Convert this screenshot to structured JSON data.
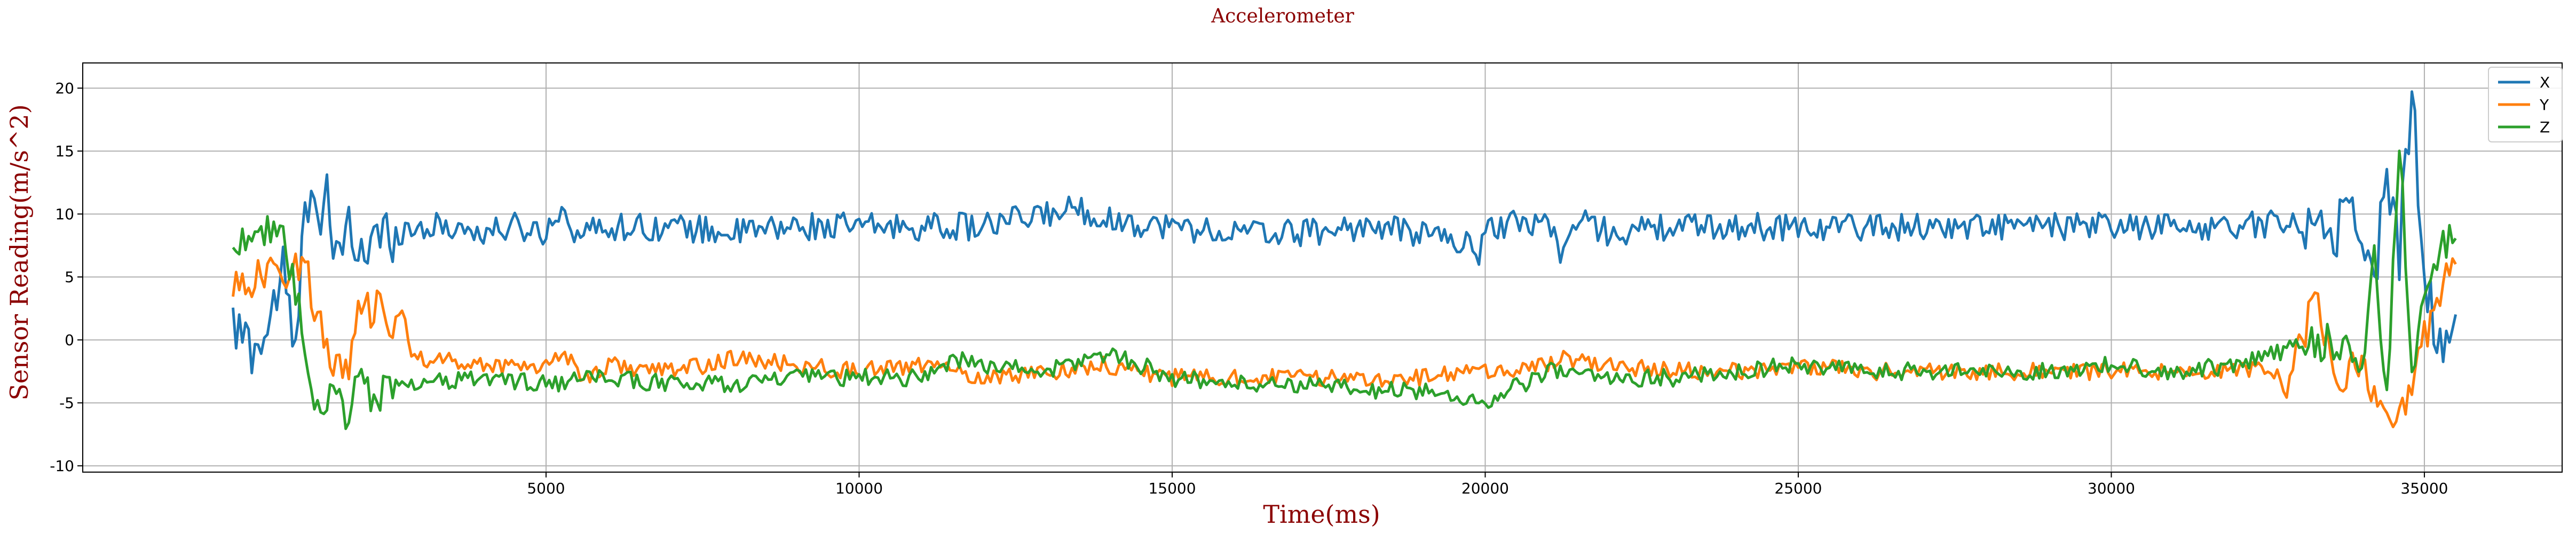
{
  "chart_data": {
    "type": "line",
    "title": "Accelerometer",
    "xlabel": "Time(ms)",
    "ylabel": "Sensor Reading(m/s^2)",
    "xlim": [
      -2400,
      37200
    ],
    "ylim": [
      -10.5,
      22
    ],
    "xticks": [
      5000,
      10000,
      15000,
      20000,
      25000,
      30000,
      35000
    ],
    "yticks": [
      -10,
      -5,
      0,
      5,
      10,
      15,
      20
    ],
    "grid": true,
    "legend_position": "top-right",
    "x_start": 0,
    "x_end": 35500,
    "title_color": "#8b0000",
    "label_color": "#8b0000",
    "series": [
      {
        "name": "X",
        "color": "#1f77b4",
        "keypoints": [
          [
            0,
            0.8
          ],
          [
            300,
            -0.5
          ],
          [
            500,
            0.2
          ],
          [
            800,
            5.5
          ],
          [
            1000,
            -1.5
          ],
          [
            1100,
            7
          ],
          [
            1200,
            11
          ],
          [
            1300,
            13.5
          ],
          [
            1400,
            9
          ],
          [
            1500,
            12.5
          ],
          [
            1600,
            4.5
          ],
          [
            1800,
            9
          ],
          [
            2000,
            7
          ],
          [
            2500,
            8.5
          ],
          [
            3000,
            9
          ],
          [
            3500,
            9
          ],
          [
            4000,
            8.5
          ],
          [
            4500,
            9
          ],
          [
            5000,
            8.5
          ],
          [
            5200,
            10.5
          ],
          [
            5500,
            8.5
          ],
          [
            6000,
            9
          ],
          [
            7000,
            9
          ],
          [
            8000,
            8.5
          ],
          [
            9000,
            9
          ],
          [
            10000,
            9
          ],
          [
            12000,
            9
          ],
          [
            13500,
            10.5
          ],
          [
            14000,
            9.5
          ],
          [
            15000,
            9
          ],
          [
            16000,
            8.5
          ],
          [
            17000,
            8.5
          ],
          [
            18000,
            9
          ],
          [
            19000,
            8.5
          ],
          [
            19500,
            8
          ],
          [
            19900,
            7
          ],
          [
            20000,
            9
          ],
          [
            21000,
            9.5
          ],
          [
            21200,
            7
          ],
          [
            21500,
            9.5
          ],
          [
            22000,
            8.5
          ],
          [
            23000,
            9
          ],
          [
            24000,
            9
          ],
          [
            25000,
            9
          ],
          [
            26000,
            9
          ],
          [
            27000,
            9
          ],
          [
            28000,
            9
          ],
          [
            29000,
            9
          ],
          [
            30000,
            9
          ],
          [
            31000,
            9
          ],
          [
            32000,
            9
          ],
          [
            33000,
            9.5
          ],
          [
            33500,
            8.5
          ],
          [
            33800,
            10
          ],
          [
            34000,
            9
          ],
          [
            34200,
            4
          ],
          [
            34400,
            14
          ],
          [
            34600,
            7
          ],
          [
            34800,
            20
          ],
          [
            35000,
            4.5
          ],
          [
            35200,
            0.5
          ],
          [
            35400,
            0
          ],
          [
            35500,
            -0.3
          ]
        ]
      },
      {
        "name": "Y",
        "color": "#ff7f0e",
        "keypoints": [
          [
            0,
            4.5
          ],
          [
            500,
            5
          ],
          [
            800,
            5.5
          ],
          [
            1000,
            6
          ],
          [
            1200,
            5.5
          ],
          [
            1300,
            2
          ],
          [
            1500,
            -0.5
          ],
          [
            1700,
            -2.5
          ],
          [
            1900,
            -1.5
          ],
          [
            2000,
            2
          ],
          [
            2300,
            2.5
          ],
          [
            2500,
            1
          ],
          [
            2700,
            2
          ],
          [
            2900,
            -1.5
          ],
          [
            3200,
            -1.5
          ],
          [
            4000,
            -2
          ],
          [
            5000,
            -2
          ],
          [
            5300,
            -1
          ],
          [
            5600,
            -3
          ],
          [
            6000,
            -2
          ],
          [
            7000,
            -2.5
          ],
          [
            8000,
            -1.5
          ],
          [
            9000,
            -2
          ],
          [
            10000,
            -2.5
          ],
          [
            11000,
            -2
          ],
          [
            12000,
            -3
          ],
          [
            13000,
            -2.5
          ],
          [
            14000,
            -2
          ],
          [
            15000,
            -3
          ],
          [
            16000,
            -3
          ],
          [
            17000,
            -3
          ],
          [
            18000,
            -3
          ],
          [
            19000,
            -3
          ],
          [
            20000,
            -2.5
          ],
          [
            21000,
            -2
          ],
          [
            21300,
            -1.5
          ],
          [
            22000,
            -2
          ],
          [
            23000,
            -2.5
          ],
          [
            24000,
            -2.5
          ],
          [
            25000,
            -2
          ],
          [
            26000,
            -2.5
          ],
          [
            27000,
            -2.5
          ],
          [
            28000,
            -2.5
          ],
          [
            29000,
            -2.5
          ],
          [
            30000,
            -2.5
          ],
          [
            31000,
            -2.5
          ],
          [
            32000,
            -2.5
          ],
          [
            32500,
            -2
          ],
          [
            32800,
            -4
          ],
          [
            33000,
            0
          ],
          [
            33300,
            3
          ],
          [
            33600,
            -3
          ],
          [
            34000,
            -2
          ],
          [
            34200,
            -5
          ],
          [
            34400,
            -7
          ],
          [
            34700,
            -5
          ],
          [
            35000,
            0
          ],
          [
            35300,
            5
          ],
          [
            35500,
            6
          ]
        ]
      },
      {
        "name": "Z",
        "color": "#2ca02c",
        "keypoints": [
          [
            0,
            7.5
          ],
          [
            200,
            8
          ],
          [
            400,
            9.5
          ],
          [
            600,
            8
          ],
          [
            800,
            7.5
          ],
          [
            1000,
            4
          ],
          [
            1200,
            -3
          ],
          [
            1400,
            -7
          ],
          [
            1600,
            -4
          ],
          [
            1800,
            -6
          ],
          [
            2000,
            -3
          ],
          [
            2300,
            -5
          ],
          [
            2600,
            -3
          ],
          [
            3000,
            -3.5
          ],
          [
            4000,
            -3
          ],
          [
            5000,
            -3.5
          ],
          [
            6000,
            -3
          ],
          [
            7000,
            -3.5
          ],
          [
            8000,
            -3.5
          ],
          [
            9000,
            -3
          ],
          [
            10000,
            -3
          ],
          [
            11000,
            -3
          ],
          [
            11500,
            -1.5
          ],
          [
            12000,
            -2
          ],
          [
            13000,
            -2.5
          ],
          [
            14000,
            -1
          ],
          [
            15000,
            -3
          ],
          [
            16000,
            -3.5
          ],
          [
            17000,
            -3.5
          ],
          [
            18000,
            -4
          ],
          [
            19000,
            -4
          ],
          [
            20000,
            -5
          ],
          [
            21000,
            -2.5
          ],
          [
            22000,
            -3
          ],
          [
            23000,
            -3
          ],
          [
            24000,
            -2.5
          ],
          [
            25000,
            -2
          ],
          [
            26000,
            -2.5
          ],
          [
            27000,
            -2.5
          ],
          [
            28000,
            -2.5
          ],
          [
            29000,
            -2.5
          ],
          [
            30000,
            -2
          ],
          [
            31000,
            -2.5
          ],
          [
            32000,
            -2
          ],
          [
            33000,
            -0.5
          ],
          [
            33500,
            0
          ],
          [
            34000,
            -2
          ],
          [
            34200,
            7
          ],
          [
            34400,
            -5
          ],
          [
            34600,
            16
          ],
          [
            34800,
            -2
          ],
          [
            35000,
            3
          ],
          [
            35300,
            8
          ],
          [
            35500,
            7.5
          ]
        ]
      }
    ]
  }
}
